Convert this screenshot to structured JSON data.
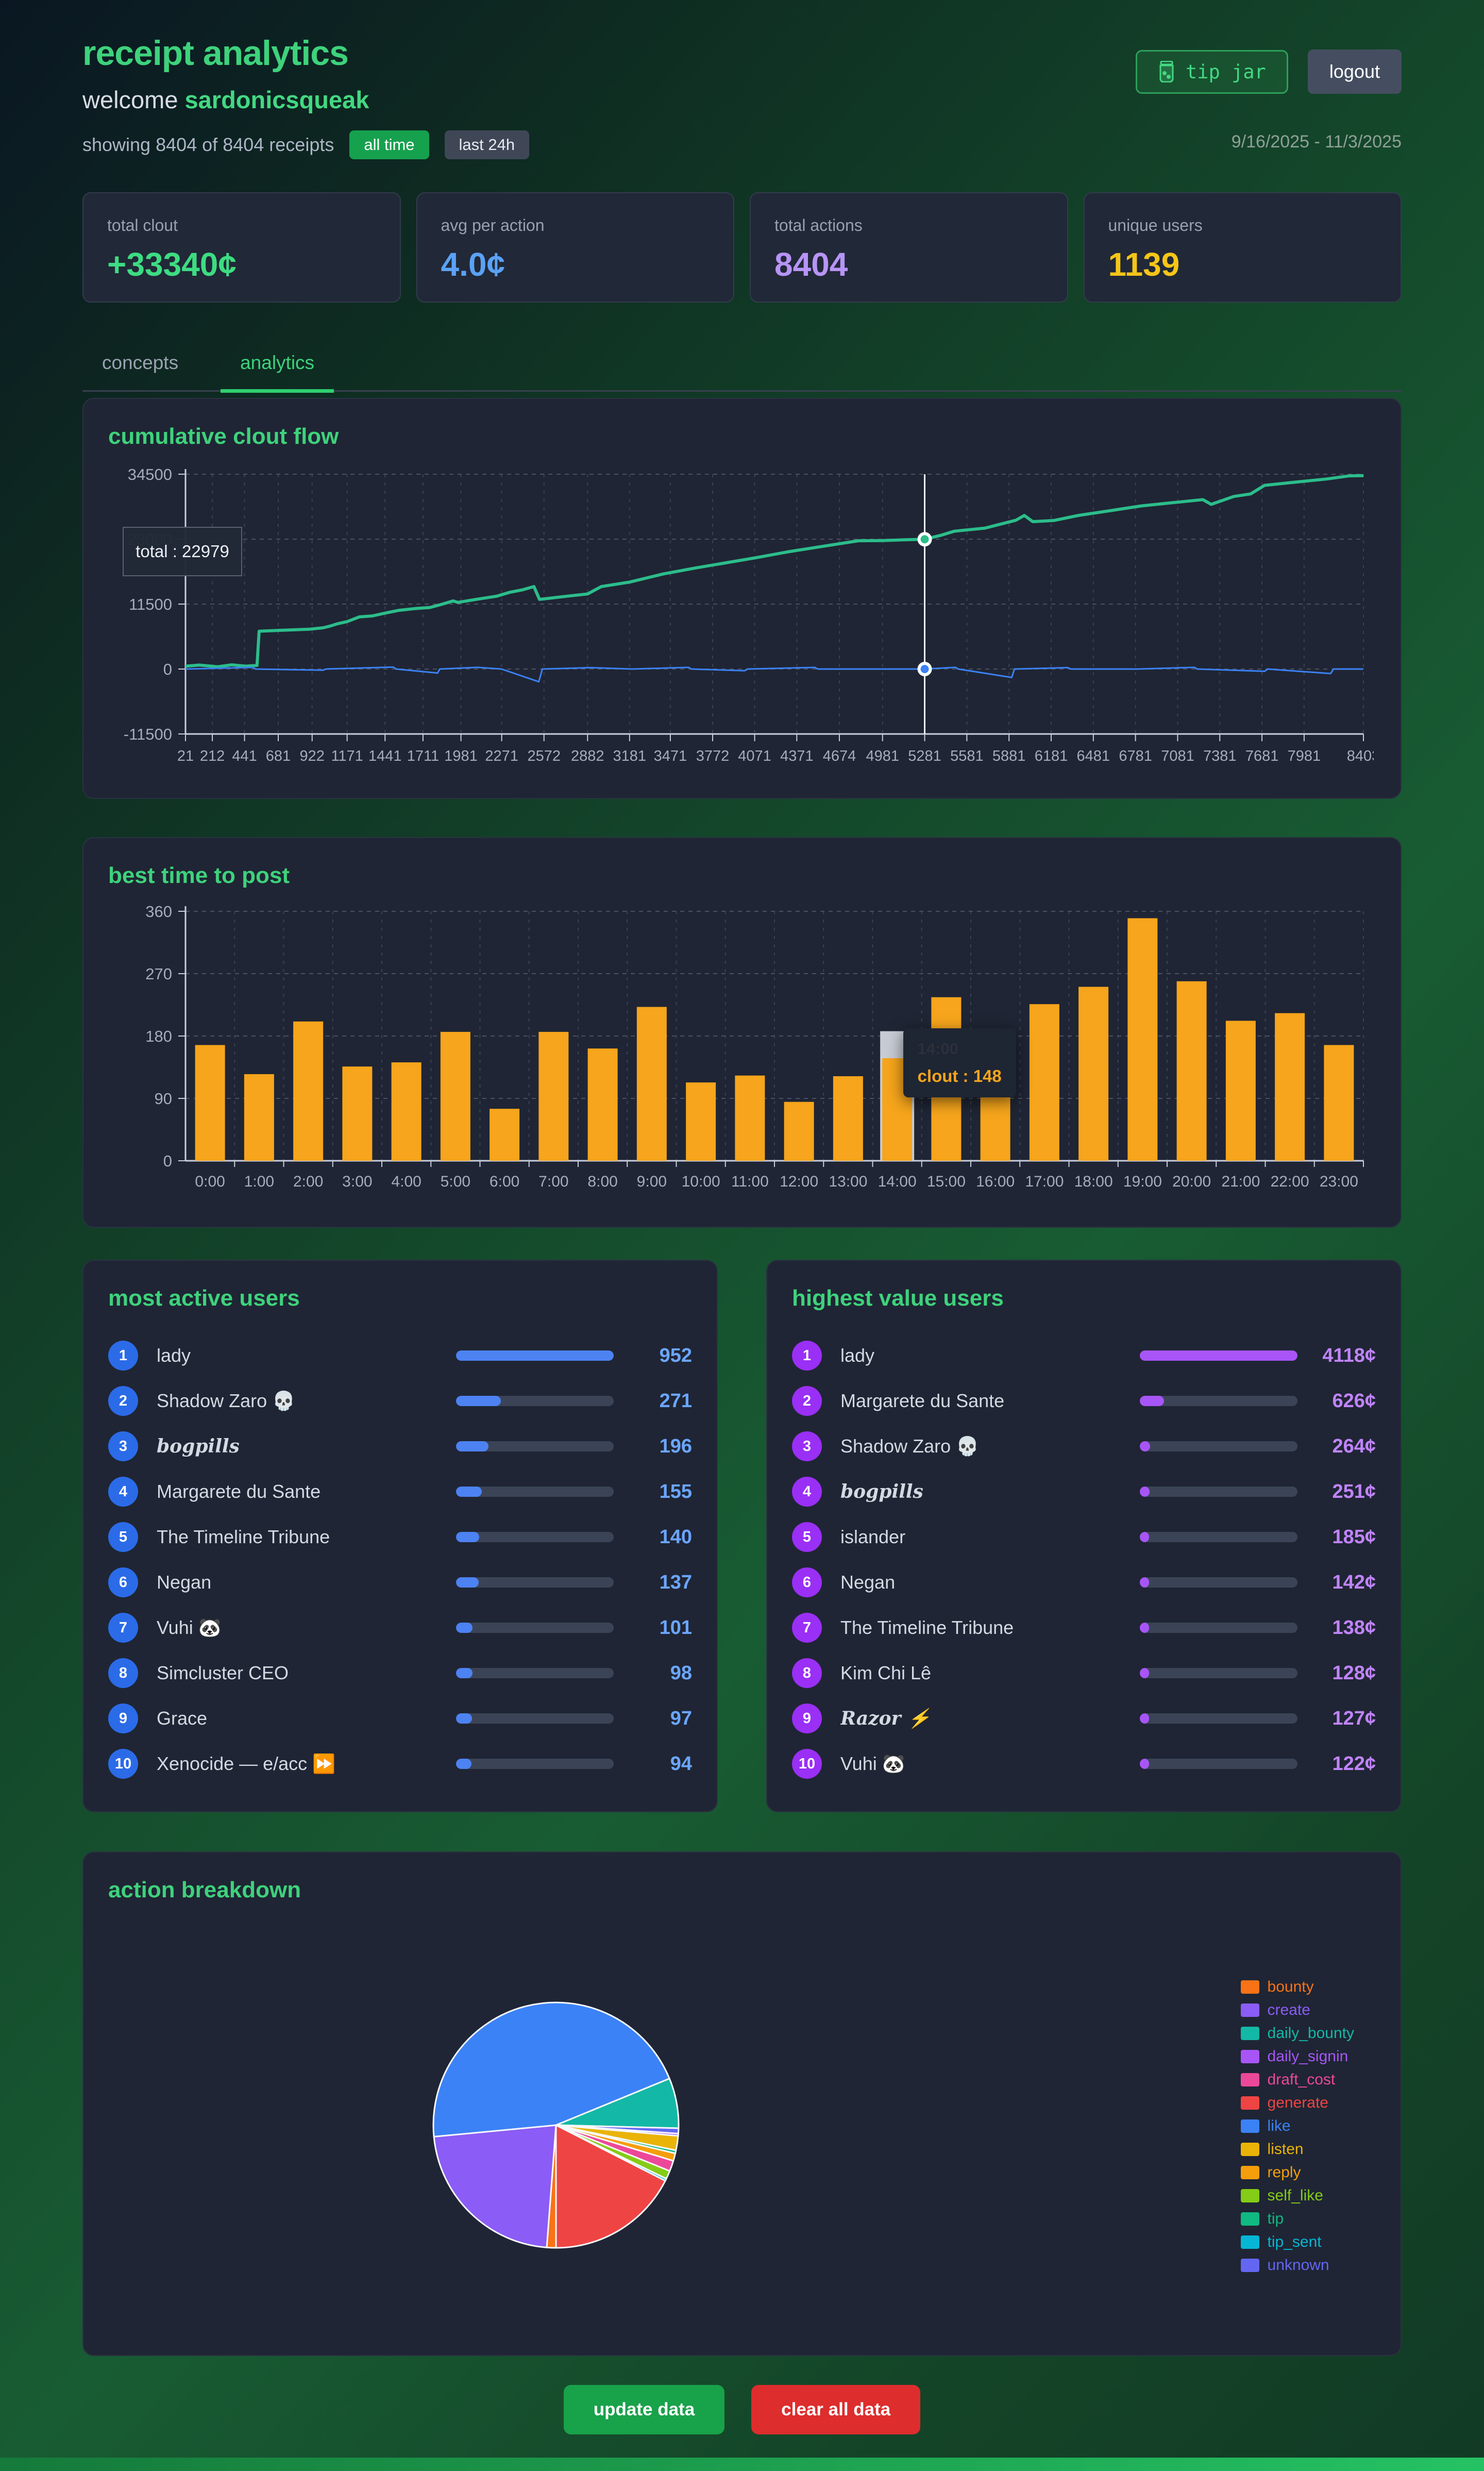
{
  "header": {
    "title": "receipt analytics",
    "welcome_prefix": "welcome ",
    "username": "sardonicsqueak",
    "showing": "showing 8404 of 8404 receipts",
    "filter_all": "all time",
    "filter_24h": "last 24h",
    "date_range": "9/16/2025 - 11/3/2025",
    "tip_jar_label": "tip jar",
    "logout_label": "logout",
    "icons": {
      "tip_jar": "jar-icon"
    }
  },
  "stats": [
    {
      "label": "total clout",
      "value": "+33340¢",
      "color": "#3ddc82"
    },
    {
      "label": "avg per action",
      "value": "4.0¢",
      "color": "#5aa2f5"
    },
    {
      "label": "total actions",
      "value": "8404",
      "color": "#b794f6"
    },
    {
      "label": "unique users",
      "value": "1139",
      "color": "#f5c518"
    }
  ],
  "tabs": [
    {
      "label": "concepts",
      "active": false
    },
    {
      "label": "analytics",
      "active": true
    }
  ],
  "chart_data": [
    {
      "type": "line",
      "title": "cumulative clout flow",
      "xlim": [
        21,
        8403
      ],
      "ylim": [
        -11500,
        34500
      ],
      "y_ticks": [
        34500,
        23000,
        11500,
        0,
        -11500
      ],
      "x_ticks": [
        21,
        212,
        441,
        681,
        922,
        1171,
        1441,
        1711,
        1981,
        2271,
        2572,
        2882,
        3181,
        3471,
        3772,
        4071,
        4371,
        4674,
        4981,
        5281,
        5581,
        5881,
        6181,
        6481,
        6781,
        7081,
        7381,
        7681,
        7981,
        8403
      ],
      "grid": true,
      "tooltip": {
        "text": "total : 22979"
      },
      "crosshair": {
        "x": 5281,
        "total": 22979,
        "secondary": 0
      },
      "series": [
        {
          "id": "total",
          "color": "#2cbd8b",
          "points": [
            [
              21,
              500
            ],
            [
              120,
              700
            ],
            [
              250,
              400
            ],
            [
              350,
              750
            ],
            [
              450,
              500
            ],
            [
              530,
              650
            ],
            [
              545,
              6700
            ],
            [
              700,
              6850
            ],
            [
              900,
              7050
            ],
            [
              1000,
              7300
            ],
            [
              1050,
              7600
            ],
            [
              1100,
              8000
            ],
            [
              1171,
              8400
            ],
            [
              1260,
              9250
            ],
            [
              1350,
              9400
            ],
            [
              1441,
              9900
            ],
            [
              1540,
              10400
            ],
            [
              1650,
              10700
            ],
            [
              1760,
              10900
            ],
            [
              1850,
              11500
            ],
            [
              1925,
              12060
            ],
            [
              1960,
              11800
            ],
            [
              2090,
              12340
            ],
            [
              2235,
              12900
            ],
            [
              2330,
              13600
            ],
            [
              2420,
              14030
            ],
            [
              2500,
              14600
            ],
            [
              2540,
              12340
            ],
            [
              2600,
              12500
            ],
            [
              2700,
              12800
            ],
            [
              2882,
              13300
            ],
            [
              2980,
              14600
            ],
            [
              3181,
              15400
            ],
            [
              3420,
              16830
            ],
            [
              3650,
              17900
            ],
            [
              3865,
              18800
            ],
            [
              4100,
              19800
            ],
            [
              4310,
              20760
            ],
            [
              4550,
              21700
            ],
            [
              4810,
              22720
            ],
            [
              4981,
              22750
            ],
            [
              5150,
              22900
            ],
            [
              5281,
              22979
            ],
            [
              5400,
              23700
            ],
            [
              5490,
              24400
            ],
            [
              5710,
              24950
            ],
            [
              5930,
              26350
            ],
            [
              5990,
              27200
            ],
            [
              6050,
              26100
            ],
            [
              6200,
              26300
            ],
            [
              6375,
              27200
            ],
            [
              6600,
              28040
            ],
            [
              6820,
              28880
            ],
            [
              7040,
              29440
            ],
            [
              7260,
              30000
            ],
            [
              7320,
              29160
            ],
            [
              7480,
              30560
            ],
            [
              7600,
              31000
            ],
            [
              7700,
              32530
            ],
            [
              7920,
              33090
            ],
            [
              8140,
              33650
            ],
            [
              8300,
              34200
            ],
            [
              8403,
              34250
            ]
          ]
        },
        {
          "id": "secondary",
          "color": "#3b82f6",
          "points": [
            [
              21,
              0
            ],
            [
              500,
              300
            ],
            [
              520,
              0
            ],
            [
              1000,
              -200
            ],
            [
              1020,
              0
            ],
            [
              1500,
              350
            ],
            [
              1520,
              0
            ],
            [
              1815,
              -700
            ],
            [
              1830,
              0
            ],
            [
              2100,
              300
            ],
            [
              2270,
              0
            ],
            [
              2535,
              -2250
            ],
            [
              2560,
              0
            ],
            [
              2900,
              250
            ],
            [
              3200,
              0
            ],
            [
              3600,
              300
            ],
            [
              3620,
              0
            ],
            [
              4000,
              -300
            ],
            [
              4020,
              0
            ],
            [
              4500,
              280
            ],
            [
              4520,
              0
            ],
            [
              5281,
              0
            ],
            [
              5500,
              300
            ],
            [
              5520,
              0
            ],
            [
              5900,
              -1500
            ],
            [
              5920,
              0
            ],
            [
              6300,
              250
            ],
            [
              6320,
              0
            ],
            [
              6800,
              0
            ],
            [
              7200,
              300
            ],
            [
              7220,
              0
            ],
            [
              7700,
              -400
            ],
            [
              7720,
              0
            ],
            [
              8170,
              -800
            ],
            [
              8190,
              0
            ],
            [
              8403,
              0
            ]
          ]
        }
      ]
    },
    {
      "type": "bar",
      "title": "best time to post",
      "categories": [
        "0:00",
        "1:00",
        "2:00",
        "3:00",
        "4:00",
        "5:00",
        "6:00",
        "7:00",
        "8:00",
        "9:00",
        "10:00",
        "11:00",
        "12:00",
        "13:00",
        "14:00",
        "15:00",
        "16:00",
        "17:00",
        "18:00",
        "19:00",
        "20:00",
        "21:00",
        "22:00",
        "23:00"
      ],
      "values": [
        167,
        125,
        201,
        136,
        142,
        186,
        75,
        186,
        162,
        222,
        113,
        123,
        85,
        122,
        148,
        236,
        158,
        226,
        251,
        350,
        259,
        202,
        213,
        167
      ],
      "color": "#f6a51c",
      "ylim": [
        0,
        360
      ],
      "y_ticks": [
        360,
        270,
        180,
        90,
        0
      ],
      "highlight": {
        "category": "14:00",
        "band_value": 187,
        "band_color": "#c7cbd3",
        "tooltip_title": "14:00",
        "tooltip_value": "clout : 148"
      }
    },
    {
      "type": "pie",
      "title": "action breakdown",
      "start_angle": 180,
      "legend_position": "right",
      "slices": [
        {
          "label": "bounty",
          "color": "#f97316",
          "pct": 1.2
        },
        {
          "label": "create",
          "color": "#8b5cf6",
          "pct": 22.3
        },
        {
          "label": "like",
          "color": "#3b82f6",
          "pct": 45.3
        },
        {
          "label": "daily_bounty",
          "color": "#14b8a6",
          "pct": 6.6
        },
        {
          "label": "unknown",
          "color": "#6366f1",
          "pct": 0.7
        },
        {
          "label": "daily_signin",
          "color": "#a855f7",
          "pct": 0.3
        },
        {
          "label": "listen",
          "color": "#eab308",
          "pct": 1.9
        },
        {
          "label": "tip",
          "color": "#10b981",
          "pct": 0.4
        },
        {
          "label": "reply",
          "color": "#f59e0b",
          "pct": 1.0
        },
        {
          "label": "draft_cost",
          "color": "#ec4899",
          "pct": 1.4
        },
        {
          "label": "self_like",
          "color": "#84cc16",
          "pct": 1.1
        },
        {
          "label": "tip_sent",
          "color": "#06b6d4",
          "pct": 0.3
        },
        {
          "label": "generate",
          "color": "#ef4444",
          "pct": 17.5
        }
      ]
    }
  ],
  "lists": {
    "most_active": {
      "title": "most active users",
      "accent": "#2b6be8",
      "fill": "#4d82f3",
      "value_color": "#6ba6ff",
      "max": 952,
      "rows": [
        {
          "rank": "1",
          "name": "lady",
          "value": "952",
          "num": 952
        },
        {
          "rank": "2",
          "name": "Shadow Zaro 💀",
          "value": "271",
          "num": 271
        },
        {
          "rank": "3",
          "name": "bogpills",
          "value": "196",
          "num": 196,
          "font": "fancy"
        },
        {
          "rank": "4",
          "name": "Margarete du Sante",
          "value": "155",
          "num": 155
        },
        {
          "rank": "5",
          "name": "The Timeline Tribune",
          "value": "140",
          "num": 140
        },
        {
          "rank": "6",
          "name": "Negan",
          "value": "137",
          "num": 137
        },
        {
          "rank": "7",
          "name": "Vuhi 🐼",
          "value": "101",
          "num": 101
        },
        {
          "rank": "8",
          "name": "Simcluster CEO",
          "value": "98",
          "num": 98
        },
        {
          "rank": "9",
          "name": "Grace",
          "value": "97",
          "num": 97
        },
        {
          "rank": "10",
          "name": "Xenocide — e/acc ⏩",
          "value": "94",
          "num": 94
        }
      ]
    },
    "highest_value": {
      "title": "highest value users",
      "accent": "#9a2ff5",
      "fill": "#a855f7",
      "value_color": "#c084fc",
      "max": 4118,
      "rows": [
        {
          "rank": "1",
          "name": "lady",
          "value": "4118¢",
          "num": 4118
        },
        {
          "rank": "2",
          "name": "Margarete du Sante",
          "value": "626¢",
          "num": 626
        },
        {
          "rank": "3",
          "name": "Shadow Zaro 💀",
          "value": "264¢",
          "num": 264
        },
        {
          "rank": "4",
          "name": "bogpills",
          "value": "251¢",
          "num": 251,
          "font": "fancy"
        },
        {
          "rank": "5",
          "name": "islander",
          "value": "185¢",
          "num": 185
        },
        {
          "rank": "6",
          "name": "Negan",
          "value": "142¢",
          "num": 142
        },
        {
          "rank": "7",
          "name": "The Timeline Tribune",
          "value": "138¢",
          "num": 138
        },
        {
          "rank": "8",
          "name": "Kim Chi Lê",
          "value": "128¢",
          "num": 128
        },
        {
          "rank": "9",
          "name": "Razor ⚡",
          "value": "127¢",
          "num": 127,
          "font": "fancy"
        },
        {
          "rank": "10",
          "name": "Vuhi 🐼",
          "value": "122¢",
          "num": 122
        }
      ]
    }
  },
  "footer": {
    "update_label": "update data",
    "clear_label": "clear all data"
  }
}
